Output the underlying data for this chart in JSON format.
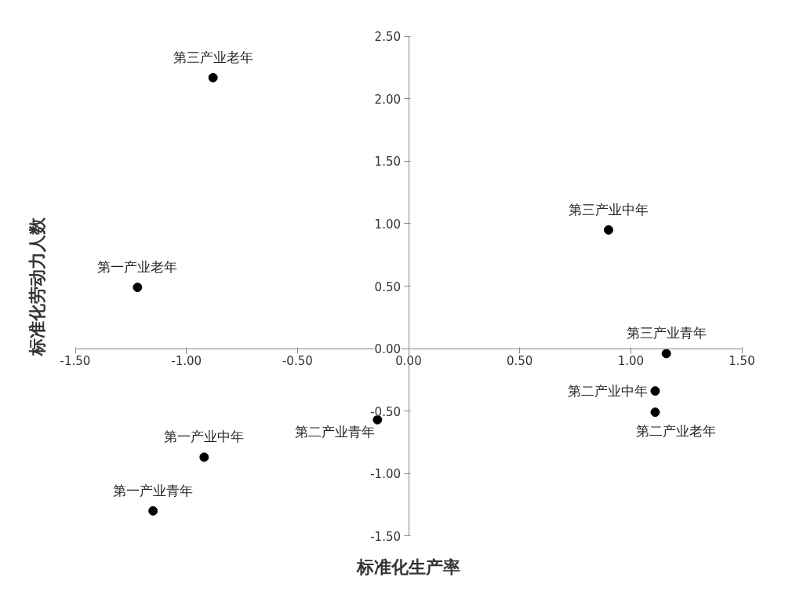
{
  "chart_data": {
    "type": "scatter",
    "xlabel": "标准化生产率",
    "ylabel": "标准化劳动力人数",
    "x": [
      -0.88,
      -1.22,
      0.9,
      1.16,
      1.11,
      1.11,
      -0.14,
      -0.92,
      -1.15
    ],
    "series": [
      {
        "color": "#000000",
        "values": [
          2.17,
          0.49,
          0.95,
          -0.04,
          -0.34,
          -0.51,
          -0.57,
          -0.87,
          -1.3
        ]
      }
    ],
    "annotations": [
      {
        "text": "第三产业老年",
        "x": -0.88,
        "y": 2.17
      },
      {
        "text": "第一产业老年",
        "x": -1.22,
        "y": 0.49
      },
      {
        "text": "第三产业中年",
        "x": 0.9,
        "y": 0.95
      },
      {
        "text": "第三产业青年",
        "x": 1.16,
        "y": -0.04
      },
      {
        "text": "第二产业中年",
        "x": 1.11,
        "y": -0.34
      },
      {
        "text": "第二产业老年",
        "x": 1.11,
        "y": -0.51
      },
      {
        "text": "第二产业青年",
        "x": -0.14,
        "y": -0.57
      },
      {
        "text": "第一产业中年",
        "x": -0.92,
        "y": -0.87
      },
      {
        "text": "第一产业青年",
        "x": -1.15,
        "y": -1.3
      }
    ],
    "xlim": [
      -1.5,
      1.5
    ],
    "ylim": [
      -1.5,
      2.5
    ],
    "xticks": [
      {
        "value": -1.5,
        "label": "-1.50"
      },
      {
        "value": -1,
        "label": "-1.00"
      },
      {
        "value": -0.5,
        "label": "-0.50"
      },
      {
        "value": 0,
        "label": "0.00"
      },
      {
        "value": 0.5,
        "label": "0.50"
      },
      {
        "value": 1,
        "label": "1.00"
      },
      {
        "value": 1.5,
        "label": "1.50"
      }
    ],
    "yticks": [
      {
        "value": -1.5,
        "label": "-1.50"
      },
      {
        "value": -1,
        "label": "-1.00"
      },
      {
        "value": -0.5,
        "label": "-0.50"
      },
      {
        "value": 0,
        "label": "0.00"
      },
      {
        "value": 0.5,
        "label": "0.50"
      },
      {
        "value": 1,
        "label": "1.00"
      },
      {
        "value": 1.5,
        "label": "1.50"
      },
      {
        "value": 2,
        "label": "2.00"
      },
      {
        "value": 2.5,
        "label": "2.50"
      }
    ],
    "grid": false,
    "marker": "circle"
  }
}
